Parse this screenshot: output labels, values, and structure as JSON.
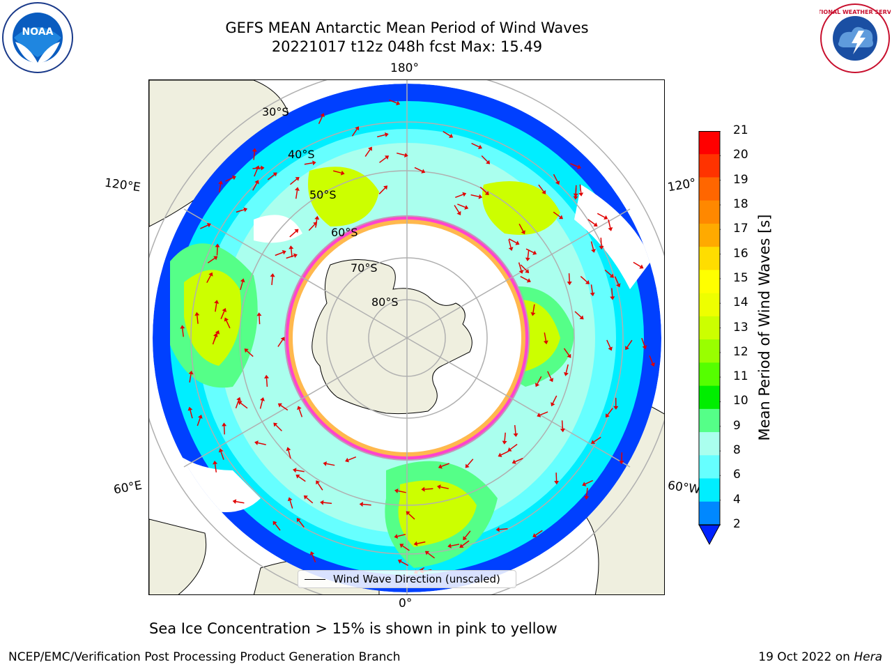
{
  "title": {
    "line1": "GEFS MEAN Antarctic Mean Period of Wind Waves",
    "line2": "20221017 t12z 048h fcst   Max: 15.49"
  },
  "map": {
    "projection": "south-polar-stereographic",
    "longitude_labels": {
      "top": "180°",
      "bottom": "0°",
      "upper_left": "120°E",
      "upper_right": "120°",
      "lower_left": "60°E",
      "lower_right": "60°W"
    },
    "latitude_labels": [
      "30°S",
      "40°S",
      "50°S",
      "60°S",
      "70°S",
      "80°S"
    ],
    "colors": {
      "land": "#efefdf",
      "grid": "#b0b0b0",
      "arrow": "#e00000",
      "ice_edge": "#ff44cc",
      "ice_inner": "#ffb84d"
    },
    "legend": {
      "label": "Wind Wave Direction (unscaled)"
    }
  },
  "colorbar": {
    "label": "Mean Period of Wind Waves [s]",
    "ticks": [
      "21",
      "20",
      "19",
      "18",
      "17",
      "16",
      "15",
      "14",
      "13",
      "12",
      "11",
      "10",
      "9",
      "8",
      "6",
      "4",
      "2"
    ],
    "colors": [
      "#ff0000",
      "#ff3300",
      "#ff6600",
      "#ff8800",
      "#ffaa00",
      "#ffdd00",
      "#ffff00",
      "#eeff00",
      "#ccff00",
      "#99ff00",
      "#55ff00",
      "#00ee00",
      "#55ff88",
      "#aaffee",
      "#66ffff",
      "#00eeff",
      "#0088ff",
      "#0022ff"
    ]
  },
  "notes": {
    "ice": "Sea Ice Concentration > 15% is shown in pink to yellow",
    "footer_left": "NCEP/EMC/Verification Post Processing Product Generation Branch",
    "footer_date": "19 Oct 2022 on",
    "footer_host": "Hera"
  },
  "logos": {
    "noaa": "NOAA",
    "nws": "NATIONAL WEATHER SERVICE"
  }
}
